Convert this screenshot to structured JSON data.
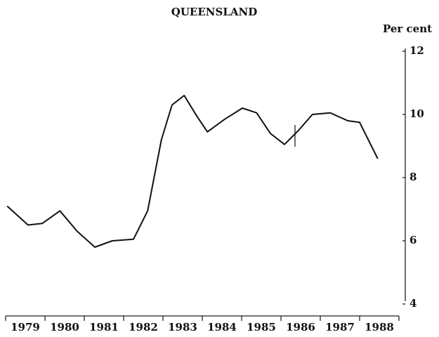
{
  "chart_data": {
    "type": "line",
    "title": "QUEENSLAND",
    "y_label": "Per cent",
    "categories": [
      "1979",
      "1980",
      "1981",
      "1982",
      "1983",
      "1984",
      "1985",
      "1986",
      "1987",
      "1988"
    ],
    "xlim": [
      1979,
      1989
    ],
    "x": [
      1979.04,
      1979.57,
      1979.93,
      1980.38,
      1980.82,
      1981.27,
      1981.71,
      1982.25,
      1982.61,
      1982.96,
      1983.23,
      1983.54,
      1983.86,
      1984.13,
      1984.57,
      1985.02,
      1985.38,
      1985.73,
      1986.09,
      1986.45,
      1986.8,
      1987.25,
      1987.7,
      1988.0,
      1988.46
    ],
    "series": [
      {
        "name": "Queensland",
        "color": "#111111",
        "values": [
          7.1,
          6.5,
          6.55,
          6.95,
          6.3,
          5.8,
          6.0,
          6.05,
          6.95,
          9.2,
          10.3,
          10.6,
          9.95,
          9.45,
          9.85,
          10.2,
          10.05,
          9.4,
          9.05,
          9.5,
          10.0,
          10.05,
          9.8,
          9.75,
          8.6
        ]
      }
    ],
    "ylim": [
      4,
      12
    ],
    "yticks": [
      4,
      6,
      8,
      10,
      12
    ]
  }
}
